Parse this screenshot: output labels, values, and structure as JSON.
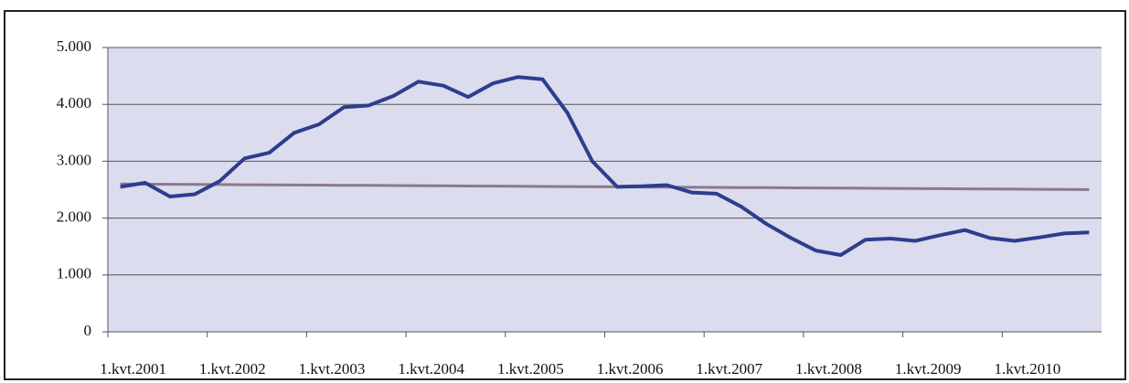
{
  "chart_data": {
    "type": "line",
    "categories": [
      "1.kvt.2001",
      null,
      null,
      null,
      "1.kvt.2002",
      null,
      null,
      null,
      "1.kvt.2003",
      null,
      null,
      null,
      "1.kvt.2004",
      null,
      null,
      null,
      "1.kvt.2005",
      null,
      null,
      null,
      "1.kvt.2006",
      null,
      null,
      null,
      "1.kvt.2007",
      null,
      null,
      null,
      "1.kvt.2008",
      null,
      null,
      null,
      "1.kvt.2009",
      null,
      null,
      null,
      "1.kvt.2010",
      null,
      null,
      null
    ],
    "series": [
      {
        "color": "#8a7a8c",
        "values": [
          2600,
          2597,
          2595,
          2592,
          2590,
          2587,
          2585,
          2582,
          2580,
          2577,
          2575,
          2572,
          2570,
          2567,
          2565,
          2562,
          2560,
          2557,
          2555,
          2552,
          2550,
          2547,
          2545,
          2542,
          2540,
          2537,
          2535,
          2532,
          2530,
          2527,
          2525,
          2522,
          2520,
          2517,
          2515,
          2512,
          2510,
          2507,
          2505,
          2502
        ]
      },
      {
        "color": "#2e3d8c",
        "values": [
          2550,
          2620,
          2380,
          2420,
          2650,
          3050,
          3150,
          3500,
          3650,
          3950,
          3980,
          4150,
          4400,
          4330,
          4130,
          4370,
          4480,
          4440,
          3850,
          3000,
          2550,
          2560,
          2580,
          2450,
          2430,
          2200,
          1900,
          1650,
          1430,
          1350,
          1620,
          1640,
          1600,
          1700,
          1790,
          1650,
          1600,
          1660,
          1730,
          1750
        ]
      }
    ],
    "ylim": [
      0,
      5000
    ],
    "yticks": [
      0,
      {
        "value": 1000,
        "label": "1.000"
      },
      {
        "value": 2000,
        "label": "2.000"
      },
      {
        "value": 3000,
        "label": "3.000"
      },
      {
        "value": 4000,
        "label": "4.000"
      },
      {
        "value": 5000,
        "label": "5.000"
      }
    ],
    "grid": true
  }
}
